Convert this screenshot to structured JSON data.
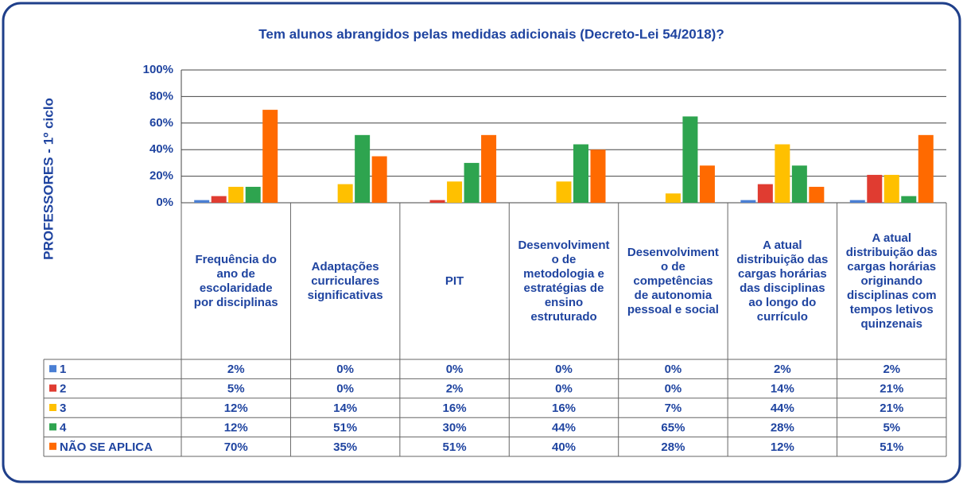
{
  "chart_data": {
    "type": "bar",
    "title": "Tem alunos abrangidos pelas medidas adicionais (Decreto-Lei 54/2018)?",
    "y_label": "PROFESSORES - 1º ciclo",
    "categories": [
      "Frequência do ano de escolaridade por disciplinas",
      "Adaptações curriculares significativas",
      "PIT",
      "Desenvolvimento de metodologia e estratégias de ensino estruturado",
      "Desenvolvimento de competências de autonomia pessoal e social",
      "A atual distribuição das cargas horárias das disciplinas ao longo do currículo",
      "A atual distribuição das cargas horárias originando disciplinas com tempos letivos quinzenais"
    ],
    "series": [
      {
        "name": "1",
        "color": "#4a7fd4",
        "values": [
          2,
          0,
          0,
          0,
          0,
          2,
          2
        ],
        "value_labels": [
          "2%",
          "0%",
          "0%",
          "0%",
          "0%",
          "2%",
          "2%"
        ]
      },
      {
        "name": "2",
        "color": "#e03c31",
        "values": [
          5,
          0,
          2,
          0,
          0,
          14,
          21
        ],
        "value_labels": [
          "5%",
          "0%",
          "2%",
          "0%",
          "0%",
          "14%",
          "21%"
        ]
      },
      {
        "name": "3",
        "color": "#ffc000",
        "values": [
          12,
          14,
          16,
          16,
          7,
          44,
          21
        ],
        "value_labels": [
          "12%",
          "14%",
          "16%",
          "16%",
          "7%",
          "44%",
          "21%"
        ]
      },
      {
        "name": "4",
        "color": "#2ea44f",
        "values": [
          12,
          51,
          30,
          44,
          65,
          28,
          5
        ],
        "value_labels": [
          "12%",
          "51%",
          "30%",
          "44%",
          "65%",
          "28%",
          "5%"
        ]
      },
      {
        "name": "NÃO SE APLICA",
        "color": "#ff6a00",
        "values": [
          70,
          35,
          51,
          40,
          28,
          12,
          51
        ],
        "value_labels": [
          "70%",
          "35%",
          "51%",
          "40%",
          "28%",
          "12%",
          "51%"
        ]
      }
    ],
    "ylim": [
      0,
      100
    ],
    "yticks": [
      {
        "value": 0,
        "label": "0%"
      },
      {
        "value": 20,
        "label": "20%"
      },
      {
        "value": 40,
        "label": "40%"
      },
      {
        "value": 60,
        "label": "60%"
      },
      {
        "value": 80,
        "label": "80%"
      },
      {
        "value": 100,
        "label": "100%"
      }
    ],
    "grid": true
  }
}
